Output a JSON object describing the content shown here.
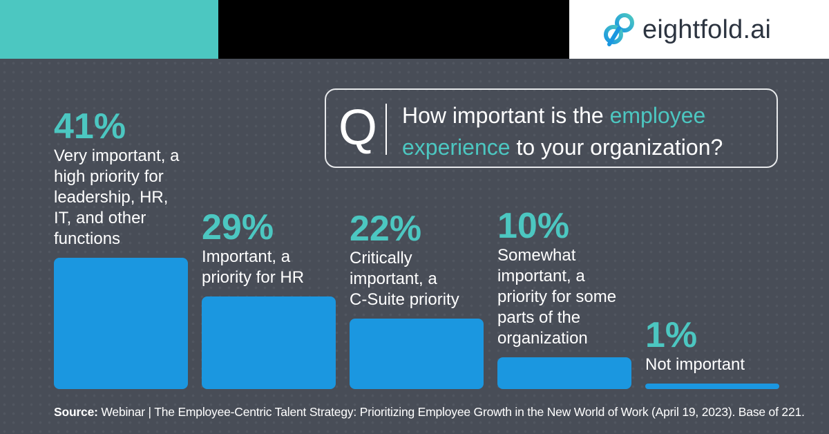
{
  "brand": {
    "name": "eightfold.ai",
    "colors": {
      "teal": "#4cc7c1",
      "bar": "#1b97e0",
      "panel": "#484d57"
    },
    "logo_icon": "infinity-loop-icon"
  },
  "question": {
    "letter": "Q",
    "text_before": "How important is the ",
    "text_highlight": "employee experience",
    "text_after": " to your organization?"
  },
  "chart_data": {
    "type": "bar",
    "categories": [
      "Very important, a high priority for leadership, HR, IT, and other functions",
      "Important, a priority for HR",
      "Critically important, a C-Suite priority",
      "Somewhat important, a priority for some parts of the organization",
      "Not important"
    ],
    "values": [
      41,
      29,
      22,
      10,
      1
    ],
    "value_labels": [
      "41%",
      "29%",
      "22%",
      "10%",
      "1%"
    ],
    "label_lines": [
      [
        "Very important, a",
        "high priority for",
        "leadership, HR,",
        "IT, and other",
        "functions"
      ],
      [
        "Important, a",
        "priority for HR"
      ],
      [
        "Critically",
        "important, a",
        "C-Suite priority"
      ],
      [
        "Somewhat",
        "important, a",
        "priority for some",
        "parts of the",
        "organization"
      ],
      [
        "Not important"
      ]
    ],
    "ylim": [
      0,
      41
    ],
    "grid": false
  },
  "source": {
    "label": "Source:",
    "text": " Webinar | The Employee-Centric Talent Strategy: Prioritizing Employee Growth in the New World of Work (April 19, 2023). Base of 221."
  }
}
